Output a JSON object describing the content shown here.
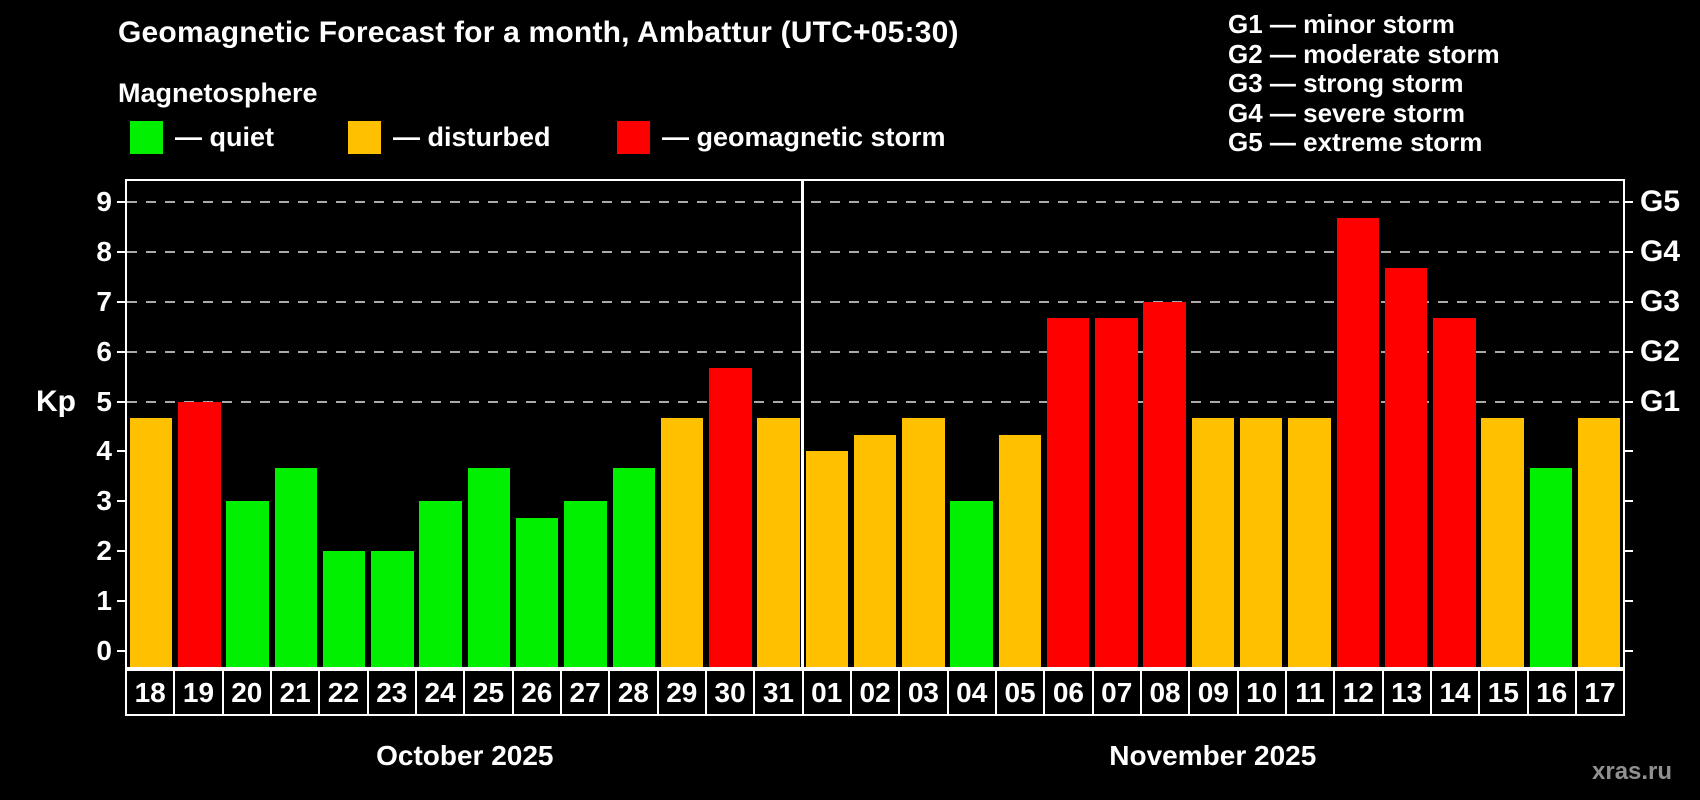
{
  "header": {
    "title": "Geomagnetic Forecast for a month, Ambattur (UTC+05:30)",
    "subtitle": "Magnetosphere"
  },
  "legend": [
    {
      "id": "quiet",
      "label": "— quiet",
      "color": "#00f000"
    },
    {
      "id": "disturbed",
      "label": "— disturbed",
      "color": "#ffc000"
    },
    {
      "id": "storm",
      "label": "— geomagnetic storm",
      "color": "#ff0000"
    }
  ],
  "storm_scale": [
    "G1 — minor storm",
    "G2 — moderate storm",
    "G3 — strong storm",
    "G4 — severe storm",
    "G5 — extreme storm"
  ],
  "watermark": {
    "text": "xras.ru"
  },
  "chart_data": {
    "type": "bar",
    "title": "Geomagnetic Forecast for a month, Ambattur (UTC+05:30)",
    "ylabel": "Kp",
    "ylim": [
      -0.32,
      9.42
    ],
    "y_ticks": [
      0,
      1,
      2,
      3,
      4,
      5,
      6,
      7,
      8,
      9
    ],
    "grid_on": true,
    "grid_values": [
      5,
      6,
      7,
      8,
      9
    ],
    "right_axis_labels": [
      {
        "value": 5,
        "label": "G1"
      },
      {
        "value": 6,
        "label": "G2"
      },
      {
        "value": 7,
        "label": "G3"
      },
      {
        "value": 8,
        "label": "G4"
      },
      {
        "value": 9,
        "label": "G5"
      }
    ],
    "colors": {
      "quiet": "#00f000",
      "disturbed": "#ffc000",
      "storm": "#ff0000"
    },
    "months": [
      {
        "label": "October 2025",
        "days": [
          {
            "date": "18",
            "kp": 4.67,
            "status": "disturbed"
          },
          {
            "date": "19",
            "kp": 5.0,
            "status": "storm"
          },
          {
            "date": "20",
            "kp": 3.0,
            "status": "quiet"
          },
          {
            "date": "21",
            "kp": 3.67,
            "status": "quiet"
          },
          {
            "date": "22",
            "kp": 2.0,
            "status": "quiet"
          },
          {
            "date": "23",
            "kp": 2.0,
            "status": "quiet"
          },
          {
            "date": "24",
            "kp": 3.0,
            "status": "quiet"
          },
          {
            "date": "25",
            "kp": 3.67,
            "status": "quiet"
          },
          {
            "date": "26",
            "kp": 2.67,
            "status": "quiet"
          },
          {
            "date": "27",
            "kp": 3.0,
            "status": "quiet"
          },
          {
            "date": "28",
            "kp": 3.67,
            "status": "quiet"
          },
          {
            "date": "29",
            "kp": 4.67,
            "status": "disturbed"
          },
          {
            "date": "30",
            "kp": 5.67,
            "status": "storm"
          },
          {
            "date": "31",
            "kp": 4.67,
            "status": "disturbed"
          }
        ]
      },
      {
        "label": "November 2025",
        "days": [
          {
            "date": "01",
            "kp": 4.0,
            "status": "disturbed"
          },
          {
            "date": "02",
            "kp": 4.33,
            "status": "disturbed"
          },
          {
            "date": "03",
            "kp": 4.67,
            "status": "disturbed"
          },
          {
            "date": "04",
            "kp": 3.0,
            "status": "quiet"
          },
          {
            "date": "05",
            "kp": 4.33,
            "status": "disturbed"
          },
          {
            "date": "06",
            "kp": 6.67,
            "status": "storm"
          },
          {
            "date": "07",
            "kp": 6.67,
            "status": "storm"
          },
          {
            "date": "08",
            "kp": 7.0,
            "status": "storm"
          },
          {
            "date": "09",
            "kp": 4.67,
            "status": "disturbed"
          },
          {
            "date": "10",
            "kp": 4.67,
            "status": "disturbed"
          },
          {
            "date": "11",
            "kp": 4.67,
            "status": "disturbed"
          },
          {
            "date": "12",
            "kp": 8.67,
            "status": "storm"
          },
          {
            "date": "13",
            "kp": 7.67,
            "status": "storm"
          },
          {
            "date": "14",
            "kp": 6.67,
            "status": "storm"
          },
          {
            "date": "15",
            "kp": 4.67,
            "status": "disturbed"
          },
          {
            "date": "16",
            "kp": 3.67,
            "status": "quiet"
          },
          {
            "date": "17",
            "kp": 4.67,
            "status": "disturbed"
          }
        ]
      }
    ]
  }
}
